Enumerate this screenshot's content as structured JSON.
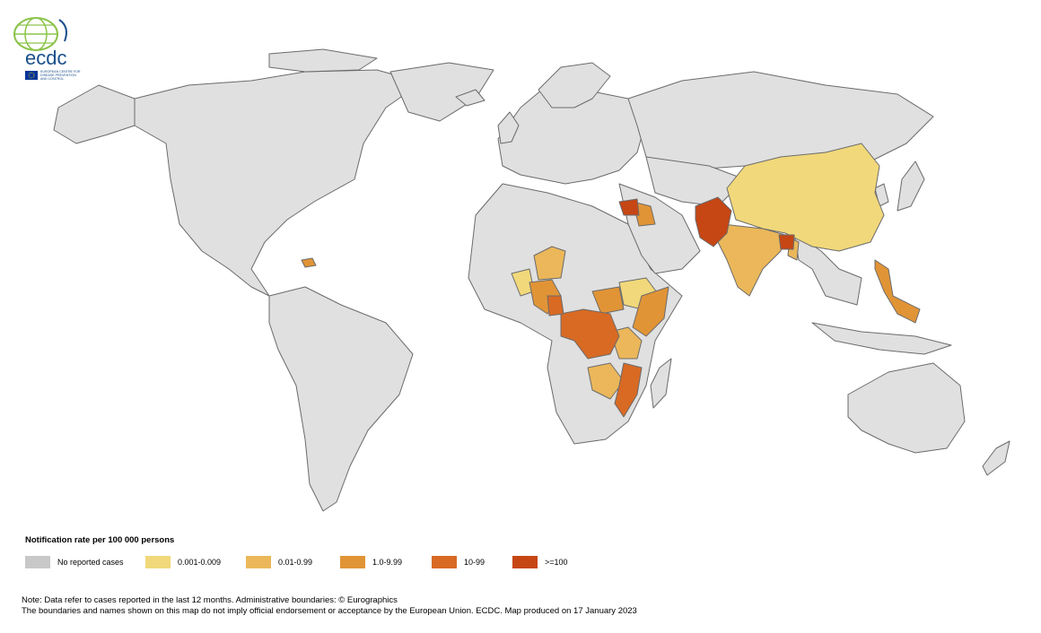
{
  "logo": {
    "wordmark": "ecdc",
    "subtitle_lines": [
      "EUROPEAN CENTRE FOR",
      "DISEASE PREVENTION",
      "AND CONTROL"
    ],
    "colors": {
      "globe": "#8bc34a",
      "text": "#1a4f8b",
      "flag": "#003399",
      "stars": "#ffcc00"
    }
  },
  "legend": {
    "title": "Notification rate per 100 000 persons",
    "items": [
      {
        "label": "No reported cases",
        "color": "#c8c8c8"
      },
      {
        "label": "0.001-0.009",
        "color": "#f1d87a"
      },
      {
        "label": "0.01-0.99",
        "color": "#ebb75a"
      },
      {
        "label": "1.0-9.99",
        "color": "#e19436"
      },
      {
        "label": "10-99",
        "color": "#d86a24"
      },
      {
        "label": ">=100",
        "color": "#c64614"
      }
    ]
  },
  "map_colors": {
    "land": "#e0e0e0",
    "border": "#6b6b6b"
  },
  "notes": {
    "line1": "Note: Data refer to cases reported in the last 12 months. Administrative boundaries: © Eurographics",
    "line2": "The boundaries and names shown on this map do not imply official endorsement or acceptance by the European Union. ECDC. Map produced on 17 January 2023"
  }
}
